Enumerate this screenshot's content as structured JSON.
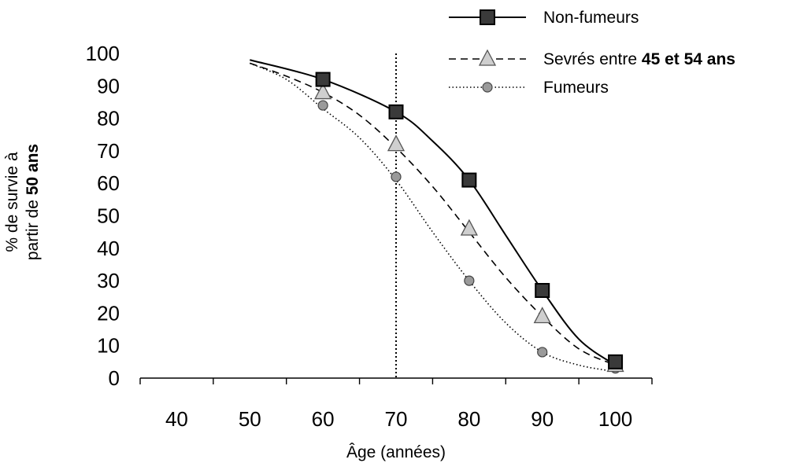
{
  "chart_data": {
    "type": "line",
    "xlabel": "Âge (années)",
    "ylabel_parts": [
      {
        "text": "% de survie à",
        "bold": false
      },
      {
        "text": "partir de ",
        "bold": false
      },
      {
        "text": "50 ans",
        "bold": true
      }
    ],
    "xlim": [
      35,
      105
    ],
    "ylim": [
      0,
      100
    ],
    "x_ticks": [
      40,
      50,
      60,
      70,
      80,
      90,
      100
    ],
    "y_ticks": [
      0,
      10,
      20,
      30,
      40,
      50,
      60,
      70,
      80,
      90,
      100
    ],
    "vertical_reference_line": {
      "x": 70,
      "style": "dotted"
    },
    "grid": false,
    "legend_position": "top-right",
    "series": [
      {
        "name": "Non-fumeurs",
        "name_parts": [
          {
            "text": "Non-fumeurs",
            "bold": false
          }
        ],
        "line_style": "solid",
        "marker": "square",
        "curve_x": [
          50,
          60,
          70,
          75,
          80,
          85,
          90,
          95,
          100
        ],
        "curve_y": [
          98,
          92,
          82,
          73,
          61,
          44,
          27,
          12,
          4
        ],
        "marker_x": [
          60,
          70,
          80,
          90,
          100
        ],
        "marker_y": [
          92,
          82,
          61,
          27,
          5
        ]
      },
      {
        "name": "Sevrés entre 45 et 54 ans",
        "name_parts": [
          {
            "text": "Sevrés entre ",
            "bold": false
          },
          {
            "text": "45 et 54 ans",
            "bold": true
          }
        ],
        "line_style": "dashed",
        "marker": "triangle",
        "curve_x": [
          50,
          55,
          60,
          65,
          70,
          75,
          80,
          85,
          90,
          95,
          100
        ],
        "curve_y": [
          97,
          93,
          88,
          81,
          71,
          59,
          45,
          31,
          19,
          9,
          4
        ],
        "marker_x": [
          60,
          70,
          80,
          90,
          100
        ],
        "marker_y": [
          88,
          72,
          46,
          19,
          4
        ]
      },
      {
        "name": "Fumeurs",
        "name_parts": [
          {
            "text": "Fumeurs",
            "bold": false
          }
        ],
        "line_style": "dotted",
        "marker": "circle",
        "curve_x": [
          50,
          55,
          60,
          65,
          70,
          75,
          80,
          85,
          90,
          95,
          100
        ],
        "curve_y": [
          97,
          92,
          83,
          74,
          61,
          45,
          30,
          17,
          8,
          4,
          2
        ],
        "marker_x": [
          60,
          70,
          80,
          90,
          100
        ],
        "marker_y": [
          84,
          62,
          30,
          8,
          3
        ]
      }
    ]
  }
}
